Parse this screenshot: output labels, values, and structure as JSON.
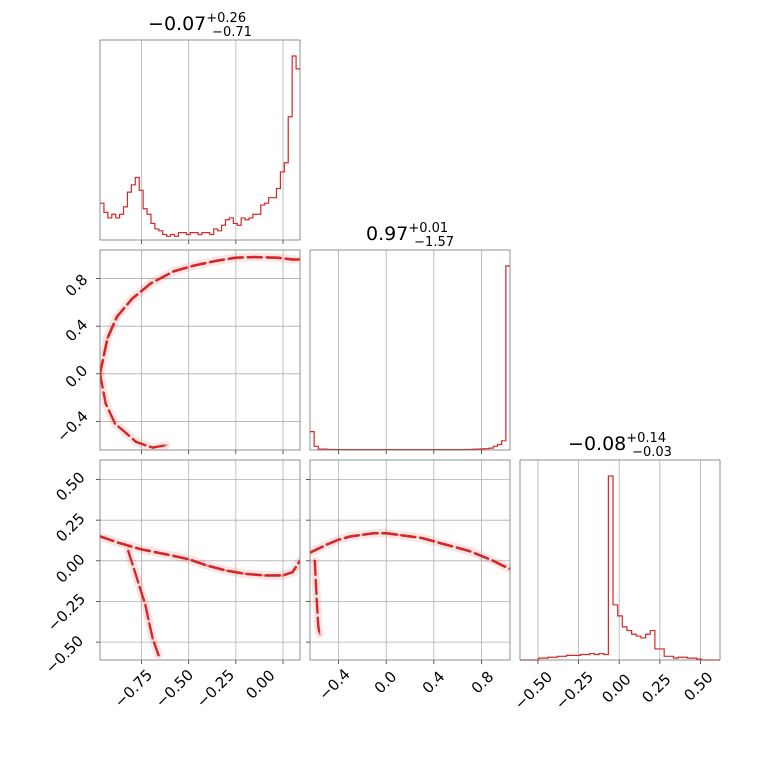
{
  "chart_data": {
    "type": "corner",
    "color": "#d62728",
    "titles": [
      {
        "median": "−0.07",
        "plus": "+0.26",
        "minus": "−0.71"
      },
      {
        "median": "0.97",
        "plus": "+0.01",
        "minus": "−1.57"
      },
      {
        "median": "−0.08",
        "plus": "+0.14",
        "minus": "−0.03"
      }
    ],
    "ranges": [
      [
        -0.97,
        0.09
      ],
      [
        -0.64,
        1.04
      ],
      [
        -0.61,
        0.62
      ]
    ],
    "ticks": {
      "x0": [
        "−0.75",
        "−0.50",
        "−0.25",
        "0.00"
      ],
      "x1": [
        "−0.4",
        "0.0",
        "0.4",
        "0.8"
      ],
      "x2": [
        "−0.50",
        "−0.25",
        "0.00",
        "0.25",
        "0.50"
      ],
      "y1": [
        "−0.4",
        "0.0",
        "0.4",
        "0.8"
      ],
      "y2": [
        "−0.50",
        "−0.25",
        "0.00",
        "0.25",
        "0.50"
      ]
    },
    "tick_values": {
      "p0": [
        -0.75,
        -0.5,
        -0.25,
        0.0
      ],
      "p1": [
        -0.4,
        0.0,
        0.4,
        0.8
      ],
      "p2": [
        -0.5,
        -0.25,
        0.0,
        0.25,
        0.5
      ]
    },
    "hist0": [
      0.2,
      0.15,
      0.12,
      0.14,
      0.12,
      0.14,
      0.18,
      0.26,
      0.3,
      0.34,
      0.27,
      0.17,
      0.14,
      0.09,
      0.06,
      0.05,
      0.03,
      0.02,
      0.03,
      0.02,
      0.04,
      0.04,
      0.03,
      0.04,
      0.04,
      0.03,
      0.04,
      0.04,
      0.03,
      0.06,
      0.05,
      0.08,
      0.11,
      0.12,
      0.09,
      0.08,
      0.12,
      0.11,
      0.12,
      0.14,
      0.14,
      0.19,
      0.2,
      0.23,
      0.23,
      0.28,
      0.37,
      0.42,
      0.67,
      1.0,
      0.93
    ],
    "hist1": [
      0.1,
      0.02,
      0.005,
      0.005,
      0.003,
      0.003,
      0.002,
      0.002,
      0.002,
      0.002,
      0.002,
      0.002,
      0.002,
      0.002,
      0.002,
      0.002,
      0.002,
      0.002,
      0.002,
      0.002,
      0.002,
      0.002,
      0.002,
      0.002,
      0.002,
      0.002,
      0.002,
      0.002,
      0.002,
      0.002,
      0.002,
      0.002,
      0.002,
      0.002,
      0.002,
      0.002,
      0.002,
      0.003,
      0.003,
      0.004,
      0.005,
      0.006,
      0.007,
      0.01,
      0.02,
      0.03,
      0.05,
      1.0
    ],
    "hist2": [
      0.0,
      0.0,
      0.0,
      0.0,
      0.01,
      0.01,
      0.015,
      0.015,
      0.02,
      0.02,
      0.025,
      0.025,
      0.025,
      0.03,
      0.03,
      0.035,
      0.03,
      0.035,
      0.03,
      1.0,
      0.3,
      0.24,
      0.18,
      0.16,
      0.14,
      0.13,
      0.12,
      0.14,
      0.16,
      0.06,
      0.06,
      0.02,
      0.02,
      0.01,
      0.015,
      0.015,
      0.01,
      0.01,
      0.005,
      0.0,
      0.0,
      0.0,
      0.0
    ],
    "scatter_1_0": {
      "x": [
        -0.97,
        -0.93,
        -0.88,
        -0.8,
        -0.7,
        -0.58,
        -0.47,
        -0.35,
        -0.25,
        -0.15,
        -0.03,
        0.05,
        0.09
      ],
      "y": [
        0.0,
        0.3,
        0.48,
        0.63,
        0.76,
        0.86,
        0.91,
        0.95,
        0.975,
        0.98,
        0.975,
        0.96,
        0.96
      ],
      "x_lower": [
        -0.97,
        -0.94,
        -0.89,
        -0.83,
        -0.78,
        -0.73,
        -0.69,
        -0.62
      ],
      "y_lower": [
        0.0,
        -0.25,
        -0.42,
        -0.5,
        -0.57,
        -0.6,
        -0.62,
        -0.6
      ]
    },
    "scatter_2_0": {
      "x": [
        -0.97,
        -0.87,
        -0.75,
        -0.62,
        -0.5,
        -0.4,
        -0.3,
        -0.2,
        -0.1,
        0.0,
        0.05,
        0.09
      ],
      "y": [
        0.15,
        0.11,
        0.07,
        0.04,
        0.01,
        -0.03,
        -0.06,
        -0.08,
        -0.09,
        -0.09,
        -0.07,
        0.0
      ],
      "x_branch": [
        -0.82,
        -0.79,
        -0.76,
        -0.73,
        -0.71,
        -0.69,
        -0.66
      ],
      "y_branch": [
        0.06,
        -0.05,
        -0.16,
        -0.27,
        -0.38,
        -0.48,
        -0.58
      ]
    },
    "scatter_2_1": {
      "x": [
        -0.64,
        -0.5,
        -0.4,
        -0.3,
        -0.2,
        -0.1,
        0.0,
        0.1,
        0.2,
        0.3,
        0.4,
        0.5,
        0.6,
        0.7,
        0.8,
        0.9,
        0.98,
        1.04
      ],
      "y": [
        0.05,
        0.1,
        0.13,
        0.15,
        0.16,
        0.17,
        0.17,
        0.16,
        0.15,
        0.14,
        0.12,
        0.1,
        0.08,
        0.06,
        0.03,
        0.0,
        -0.03,
        -0.05
      ],
      "x_branch": [
        -0.6,
        -0.59,
        -0.58,
        -0.57,
        -0.56
      ],
      "y_branch": [
        0.0,
        -0.15,
        -0.28,
        -0.4,
        -0.45
      ]
    }
  }
}
